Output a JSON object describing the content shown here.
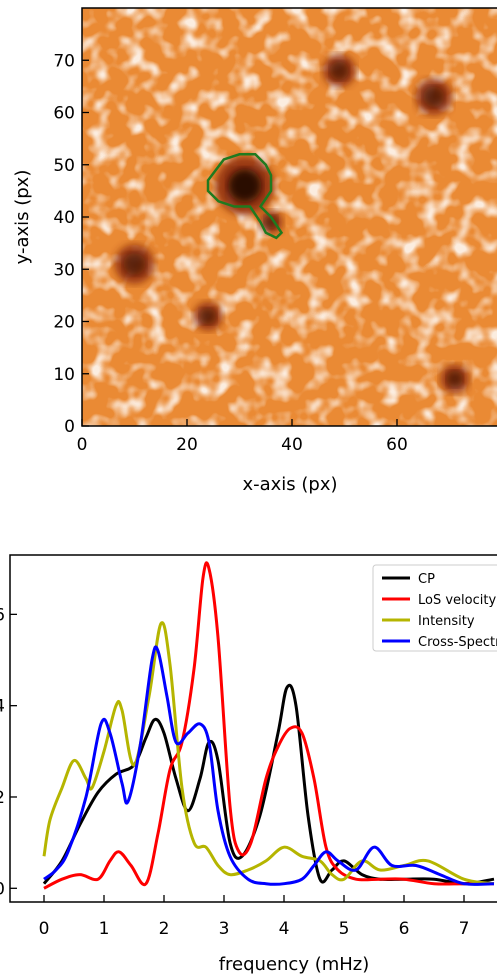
{
  "chart_data": [
    {
      "type": "heatmap",
      "title": "",
      "xlabel": "x-axis (px)",
      "ylabel": "y-axis (px)",
      "xlim": [
        0,
        80
      ],
      "ylim": [
        0,
        80
      ],
      "xticks": [
        0,
        20,
        40,
        60
      ],
      "yticks": [
        0,
        10,
        20,
        30,
        40,
        50,
        60,
        70
      ],
      "colormap": "orange",
      "contour_color": "#1f7a1f",
      "dark_spots": [
        {
          "x": 31,
          "y": 46,
          "r": 4.5
        },
        {
          "x": 36,
          "y": 39,
          "r": 1.8
        },
        {
          "x": 10,
          "y": 31,
          "r": 3
        },
        {
          "x": 24,
          "y": 21,
          "r": 2.2
        },
        {
          "x": 49,
          "y": 68,
          "r": 2.5
        },
        {
          "x": 67,
          "y": 63,
          "r": 2.8
        },
        {
          "x": 71,
          "y": 9,
          "r": 2.2
        }
      ],
      "contour": [
        [
          24,
          47
        ],
        [
          27,
          51
        ],
        [
          30,
          52
        ],
        [
          33,
          52
        ],
        [
          35,
          50
        ],
        [
          36,
          48
        ],
        [
          36,
          45
        ],
        [
          34,
          42
        ],
        [
          36,
          40
        ],
        [
          38,
          37
        ],
        [
          37,
          36
        ],
        [
          35,
          37
        ],
        [
          34,
          39
        ],
        [
          32,
          42
        ],
        [
          29,
          42
        ],
        [
          26,
          43
        ],
        [
          24,
          45
        ]
      ]
    },
    {
      "type": "line",
      "title": "",
      "xlabel": "frequency (mHz)",
      "ylabel": "",
      "xlim": [
        -0.3,
        7.6
      ],
      "ylim": [
        -0.03,
        0.73
      ],
      "xticks": [
        0,
        1,
        2,
        3,
        4,
        5,
        6,
        7
      ],
      "yticks": [
        0,
        0.2,
        0.4,
        0.6
      ],
      "ytick_labels": [
        "0",
        "2",
        "4",
        "6"
      ],
      "legend_position": "top-right",
      "series": [
        {
          "name": "CP",
          "color": "#000000",
          "x": [
            0,
            0.3,
            0.6,
            0.9,
            1.2,
            1.5,
            1.7,
            1.85,
            2.0,
            2.2,
            2.4,
            2.6,
            2.75,
            2.9,
            3.1,
            3.3,
            3.6,
            3.9,
            4.05,
            4.2,
            4.4,
            4.6,
            4.8,
            5.0,
            5.3,
            5.6,
            6.0,
            6.5,
            7.0,
            7.5
          ],
          "y": [
            0.01,
            0.06,
            0.14,
            0.21,
            0.25,
            0.27,
            0.33,
            0.37,
            0.34,
            0.24,
            0.17,
            0.24,
            0.32,
            0.28,
            0.1,
            0.07,
            0.16,
            0.34,
            0.44,
            0.4,
            0.16,
            0.02,
            0.04,
            0.06,
            0.03,
            0.02,
            0.02,
            0.02,
            0.01,
            0.02
          ]
        },
        {
          "name": "LoS velocity",
          "color": "#ff0000",
          "x": [
            0,
            0.3,
            0.6,
            0.9,
            1.1,
            1.25,
            1.45,
            1.7,
            1.9,
            2.1,
            2.3,
            2.5,
            2.65,
            2.75,
            2.9,
            3.1,
            3.25,
            3.45,
            3.7,
            3.9,
            4.1,
            4.3,
            4.5,
            4.7,
            4.9,
            5.2,
            5.6,
            6.0,
            6.5,
            7.0,
            7.5
          ],
          "y": [
            0.0,
            0.02,
            0.03,
            0.02,
            0.06,
            0.08,
            0.05,
            0.01,
            0.12,
            0.26,
            0.32,
            0.48,
            0.68,
            0.7,
            0.55,
            0.18,
            0.08,
            0.1,
            0.24,
            0.31,
            0.35,
            0.34,
            0.24,
            0.09,
            0.04,
            0.02,
            0.02,
            0.02,
            0.01,
            0.01,
            0.01
          ]
        },
        {
          "name": "Intensity",
          "color": "#b5b500",
          "x": [
            0,
            0.1,
            0.3,
            0.5,
            0.7,
            0.8,
            1.0,
            1.2,
            1.3,
            1.5,
            1.75,
            1.95,
            2.1,
            2.3,
            2.5,
            2.7,
            2.9,
            3.1,
            3.4,
            3.7,
            4.0,
            4.3,
            4.6,
            4.8,
            5.0,
            5.3,
            5.6,
            6.0,
            6.4,
            7.0,
            7.5
          ],
          "y": [
            0.07,
            0.15,
            0.22,
            0.28,
            0.24,
            0.22,
            0.3,
            0.4,
            0.39,
            0.27,
            0.42,
            0.58,
            0.49,
            0.22,
            0.1,
            0.09,
            0.05,
            0.03,
            0.04,
            0.06,
            0.09,
            0.07,
            0.06,
            0.03,
            0.02,
            0.06,
            0.04,
            0.05,
            0.06,
            0.02,
            0.01
          ]
        },
        {
          "name": "Cross-Spectrum",
          "color": "#0000ff",
          "x": [
            0,
            0.2,
            0.4,
            0.7,
            0.95,
            1.1,
            1.3,
            1.4,
            1.6,
            1.8,
            1.9,
            2.05,
            2.2,
            2.4,
            2.6,
            2.75,
            2.9,
            3.1,
            3.4,
            3.7,
            4.0,
            4.3,
            4.5,
            4.7,
            4.9,
            5.2,
            5.5,
            5.8,
            6.2,
            6.6,
            7.0,
            7.5
          ],
          "y": [
            0.02,
            0.04,
            0.08,
            0.2,
            0.36,
            0.34,
            0.23,
            0.19,
            0.31,
            0.5,
            0.52,
            0.42,
            0.32,
            0.34,
            0.36,
            0.32,
            0.17,
            0.07,
            0.02,
            0.01,
            0.01,
            0.02,
            0.05,
            0.08,
            0.06,
            0.04,
            0.09,
            0.05,
            0.05,
            0.03,
            0.01,
            0.01
          ]
        }
      ]
    }
  ]
}
